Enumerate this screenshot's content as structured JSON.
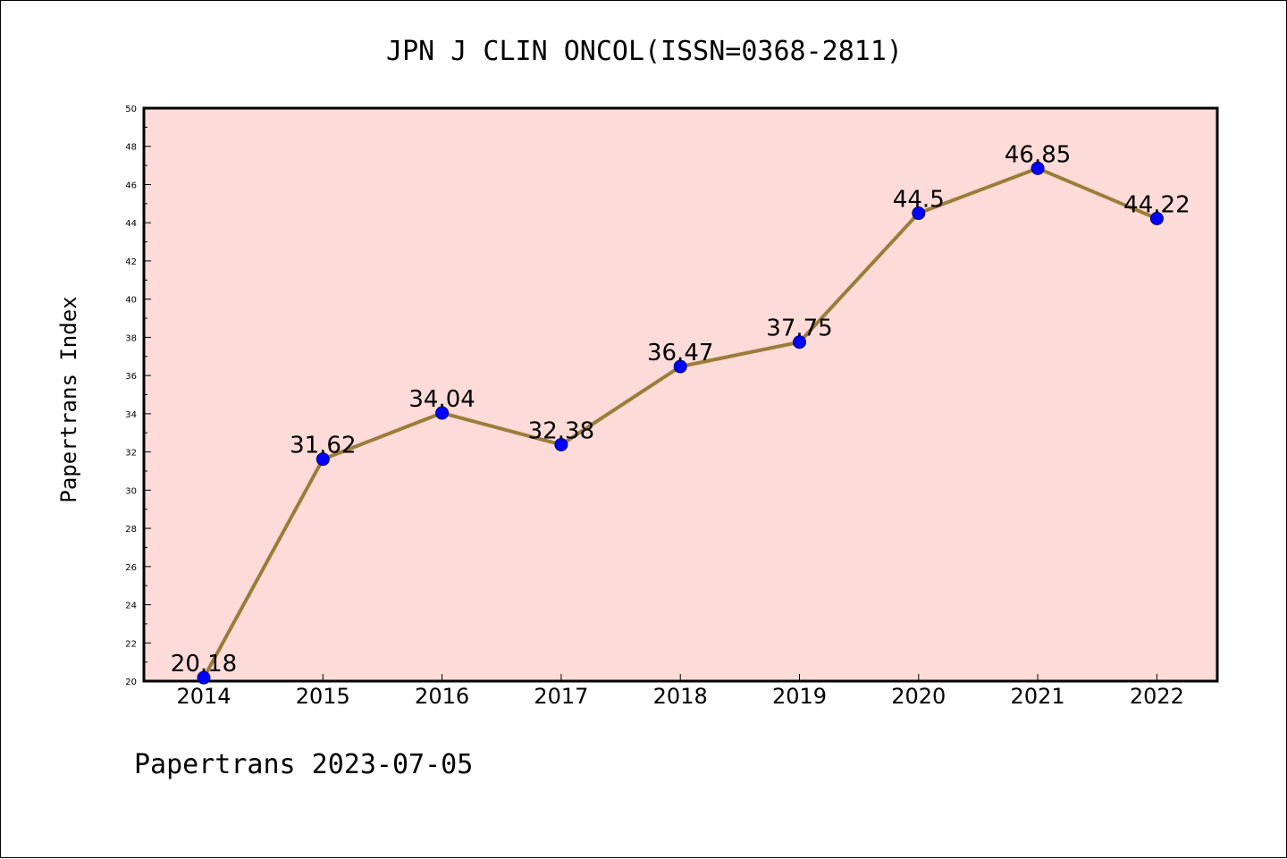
{
  "chart_data": {
    "type": "line",
    "title": "JPN J CLIN ONCOL(ISSN=0368-2811)",
    "ylabel": "Papertrans Index",
    "xlabel": "",
    "footer": "Papertrans 2023-07-05",
    "categories": [
      "2014",
      "2015",
      "2016",
      "2017",
      "2018",
      "2019",
      "2020",
      "2021",
      "2022"
    ],
    "values": [
      20.18,
      31.62,
      34.04,
      32.38,
      36.47,
      37.75,
      44.5,
      46.85,
      44.22
    ],
    "data_labels": [
      "20.18",
      "31.62",
      "34.04",
      "32.38",
      "36.47",
      "37.75",
      "44.5",
      "46.85",
      "44.22"
    ],
    "ylim": [
      20,
      50
    ],
    "yticks": [
      20,
      22,
      24,
      26,
      28,
      30,
      32,
      34,
      36,
      38,
      40,
      42,
      44,
      46,
      48,
      50
    ],
    "grid": false,
    "colors": {
      "plot_background": "#fddbd8",
      "line": "#9b7d3a",
      "marker": "#0000ff"
    }
  }
}
